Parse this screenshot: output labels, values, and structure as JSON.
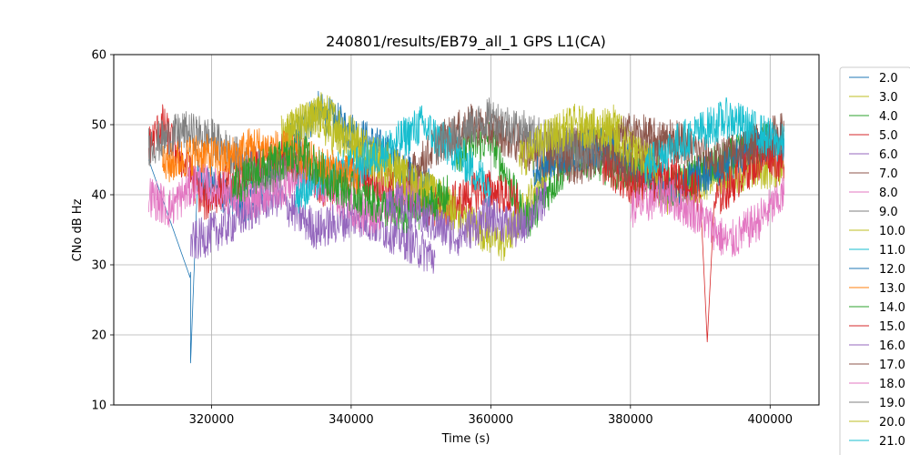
{
  "chart_data": {
    "type": "line",
    "title": "240801/results/EB79_all_1 GPS L1(CA)",
    "xlabel": "Time (s)",
    "ylabel": "CNo dB Hz",
    "xlim": [
      306000,
      407000
    ],
    "ylim": [
      10,
      60
    ],
    "xticks": [
      320000,
      340000,
      360000,
      380000,
      400000
    ],
    "yticks": [
      10,
      20,
      30,
      40,
      50,
      60
    ],
    "grid": true,
    "legend_position": "right",
    "series": [
      {
        "name": "2.0",
        "color": "#1f77b4",
        "x": [
          311000,
          317000,
          317000,
          318000,
          325000,
          335000,
          345000,
          352000
        ],
        "values": [
          45,
          28,
          16,
          42,
          39,
          52,
          46,
          40
        ]
      },
      {
        "name": "3.0",
        "color": "#bcbd22",
        "x": [
          330000,
          336000,
          342000,
          357000,
          362000,
          370000,
          378000,
          385000,
          393000,
          402000
        ],
        "values": [
          48,
          52,
          47,
          36,
          33,
          47,
          50,
          40,
          43,
          44
        ]
      },
      {
        "name": "4.0",
        "color": "#2ca02c",
        "x": [
          355000,
          360000,
          365000,
          372000,
          380000,
          386000,
          392000,
          400000
        ],
        "values": [
          46,
          48,
          36,
          46,
          43,
          41,
          44,
          48
        ]
      },
      {
        "name": "5.0",
        "color": "#d62728",
        "x": [
          311000,
          313000,
          319000,
          323000,
          330000,
          336000,
          341000,
          347000,
          353000,
          359000,
          364000
        ],
        "values": [
          47,
          50,
          39,
          42,
          46,
          41,
          43,
          40,
          38,
          41,
          39
        ]
      },
      {
        "name": "6.0",
        "color": "#9467bd",
        "x": [
          317000,
          323000,
          329000,
          335000,
          341000,
          347000,
          352000
        ],
        "values": [
          33,
          36,
          40,
          35,
          37,
          34,
          31
        ]
      },
      {
        "name": "7.0",
        "color": "#8c564b",
        "x": [
          348000,
          352000,
          357000,
          361000,
          366000,
          373000,
          380000,
          387000
        ],
        "values": [
          42,
          47,
          50,
          49,
          46,
          44,
          49,
          47
        ]
      },
      {
        "name": "8.0",
        "color": "#e377c2",
        "x": [
          311000,
          314000,
          318000,
          325000,
          334000,
          342000,
          350000
        ],
        "values": [
          40,
          38,
          42,
          39,
          43,
          37,
          40
        ]
      },
      {
        "name": "9.0",
        "color": "#7f7f7f",
        "x": [
          311000,
          316000,
          320000,
          324000,
          329000,
          334000
        ],
        "values": [
          47,
          49,
          48,
          45,
          43,
          46
        ]
      },
      {
        "name": "10.0",
        "color": "#bcbd22",
        "x": [
          330000,
          335000,
          340000,
          345000,
          350000,
          355000
        ],
        "values": [
          49,
          51,
          46,
          44,
          41,
          38
        ]
      },
      {
        "name": "11.0",
        "color": "#17becf",
        "x": [
          332000,
          337000,
          341000,
          346000,
          350000,
          355000,
          360000
        ],
        "values": [
          40,
          43,
          44,
          47,
          50,
          46,
          41
        ]
      },
      {
        "name": "12.0",
        "color": "#1f77b4",
        "x": [
          366000,
          371000,
          376000,
          381000,
          386000,
          391000,
          396000,
          402000
        ],
        "values": [
          44,
          46,
          47,
          44,
          41,
          43,
          46,
          48
        ]
      },
      {
        "name": "13.0",
        "color": "#ff7f0e",
        "x": [
          313000,
          318000,
          322000,
          326000,
          331000,
          336000,
          341000
        ],
        "values": [
          44,
          46,
          45,
          47,
          46,
          44,
          42
        ]
      },
      {
        "name": "14.0",
        "color": "#2ca02c",
        "x": [
          323000,
          328000,
          333000,
          337000,
          343000,
          348000,
          354000
        ],
        "values": [
          41,
          44,
          46,
          42,
          39,
          37,
          40
        ]
      },
      {
        "name": "15.0",
        "color": "#d62728",
        "x": [
          376000,
          381000,
          386000,
          390000,
          391000,
          392000,
          396000,
          400000,
          402000
        ],
        "values": [
          44,
          41,
          43,
          40,
          19,
          39,
          43,
          46,
          44
        ]
      },
      {
        "name": "16.0",
        "color": "#9467bd",
        "x": [
          345000,
          350000,
          355000,
          360000,
          364000,
          368000
        ],
        "values": [
          40,
          37,
          34,
          37,
          35,
          40
        ]
      },
      {
        "name": "17.0",
        "color": "#8c564b",
        "x": [
          368000,
          374000,
          380000,
          386000,
          392000,
          397000,
          402000
        ],
        "values": [
          46,
          47,
          44,
          48,
          45,
          47,
          49
        ]
      },
      {
        "name": "18.0",
        "color": "#e377c2",
        "x": [
          380000,
          385000,
          390000,
          394000,
          398000,
          402000
        ],
        "values": [
          38,
          40,
          37,
          33,
          36,
          40
        ]
      },
      {
        "name": "19.0",
        "color": "#7f7f7f",
        "x": [
          352000,
          356000,
          360000,
          365000,
          370000,
          376000
        ],
        "values": [
          47,
          49,
          51,
          49,
          47,
          46
        ]
      },
      {
        "name": "20.0",
        "color": "#bcbd22",
        "x": [
          364000,
          368000,
          372000,
          376000,
          380000,
          384000
        ],
        "values": [
          45,
          48,
          50,
          49,
          46,
          44
        ]
      },
      {
        "name": "21.0",
        "color": "#17becf",
        "x": [
          382000,
          386000,
          390000,
          394000,
          398000,
          402000
        ],
        "values": [
          44,
          47,
          49,
          51,
          49,
          47
        ]
      }
    ]
  }
}
